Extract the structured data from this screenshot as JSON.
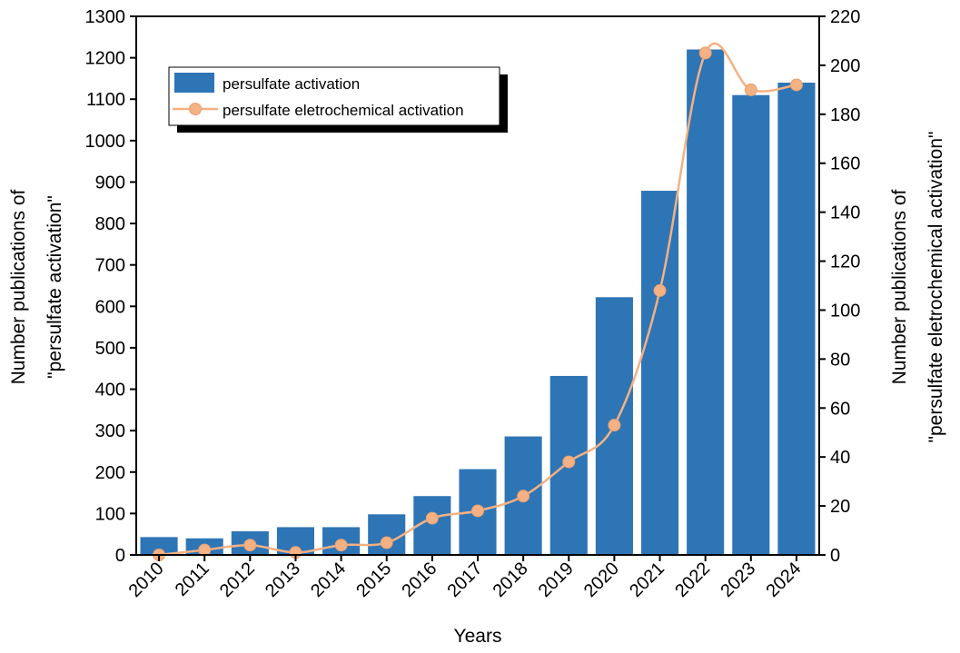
{
  "chart_data": {
    "type": "bar",
    "categories": [
      "2010",
      "2011",
      "2012",
      "2013",
      "2014",
      "2015",
      "2016",
      "2017",
      "2018",
      "2019",
      "2020",
      "2021",
      "2022",
      "2023",
      "2024"
    ],
    "series": [
      {
        "name": "persulfate activation",
        "type": "bar",
        "axis": "left",
        "color": "#2E75B6",
        "values": [
          43,
          40,
          57,
          67,
          67,
          98,
          142,
          207,
          286,
          432,
          622,
          879,
          1220,
          1110,
          1140
        ]
      },
      {
        "name": "persulfate eletrochemical activation",
        "type": "line",
        "axis": "right",
        "color": "#F4B183",
        "marker": "circle",
        "values": [
          0,
          2,
          4,
          1,
          4,
          5,
          15,
          18,
          24,
          38,
          53,
          108,
          205,
          190,
          192
        ]
      }
    ],
    "xlabel": "Years",
    "ylabel_left": [
      "Number publications of",
      "\"persulfate activation\""
    ],
    "ylabel_right": [
      "Number publications of",
      "\"persulfate eletrochemical activation\""
    ],
    "ylim_left": [
      0,
      1300
    ],
    "yticks_left": [
      "0",
      "100",
      "200",
      "300",
      "400",
      "500",
      "600",
      "700",
      "800",
      "900",
      "1000",
      "1100",
      "1200",
      "1300"
    ],
    "ylim_right": [
      0,
      220
    ],
    "yticks_right": [
      "0",
      "20",
      "40",
      "60",
      "80",
      "100",
      "120",
      "140",
      "160",
      "180",
      "200",
      "220"
    ],
    "grid": false,
    "legend_position": "top-left"
  }
}
